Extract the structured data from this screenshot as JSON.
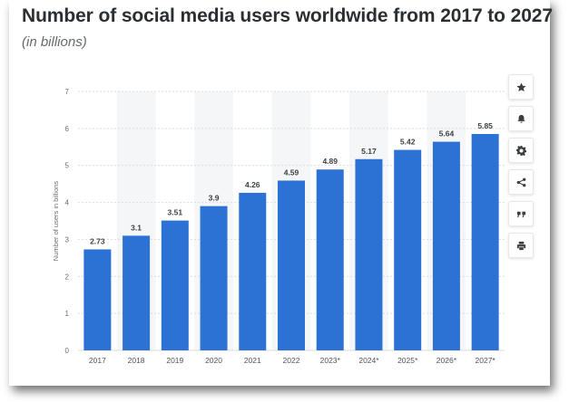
{
  "header": {
    "title": "Number of social media users worldwide from 2017 to 2027",
    "subtitle": "(in billions)"
  },
  "toolbar": {
    "buttons": [
      {
        "icon": "star-icon",
        "name": "favorite-button"
      },
      {
        "icon": "bell-icon",
        "name": "notification-button"
      },
      {
        "icon": "gear-icon",
        "name": "settings-button"
      },
      {
        "icon": "share-icon",
        "name": "share-button"
      },
      {
        "icon": "quote-icon",
        "name": "cite-button"
      },
      {
        "icon": "print-icon",
        "name": "print-button"
      }
    ]
  },
  "colors": {
    "bar": "#2c72d4",
    "grid": "#d9dde1",
    "band": "#f4f6f8",
    "text": "#3b3f44"
  },
  "chart_data": {
    "type": "bar",
    "title": "Number of social media users worldwide from 2017 to 2027",
    "subtitle": "(in billions)",
    "xlabel": "",
    "ylabel": "Number of users in billions",
    "categories": [
      "2017",
      "2018",
      "2019",
      "2020",
      "2021",
      "2022",
      "2023*",
      "2024*",
      "2025*",
      "2026*",
      "2027*"
    ],
    "values": [
      2.73,
      3.1,
      3.51,
      3.9,
      4.26,
      4.59,
      4.89,
      5.17,
      5.42,
      5.64,
      5.85
    ],
    "value_labels": [
      "2.73",
      "3.1",
      "3.51",
      "3.9",
      "4.26",
      "4.59",
      "4.89",
      "5.17",
      "5.42",
      "5.64",
      "5.85"
    ],
    "yticks": [
      0,
      1,
      2,
      3,
      4,
      5,
      6,
      7
    ],
    "ylim": [
      0,
      7
    ],
    "grid": true
  }
}
